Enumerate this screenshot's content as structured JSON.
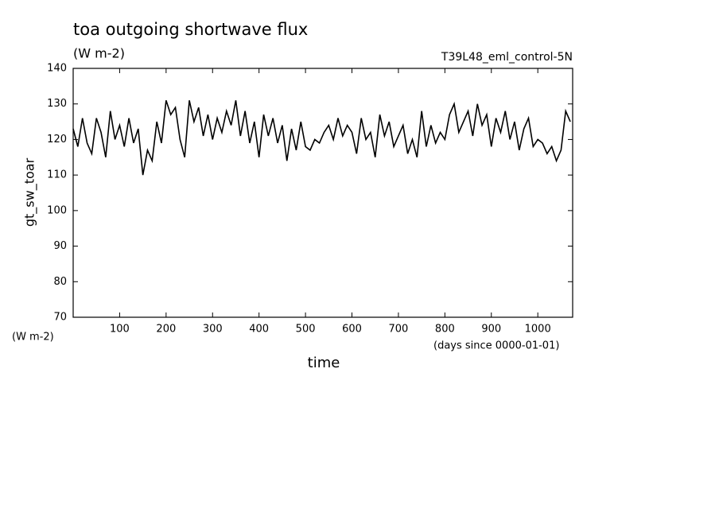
{
  "chart_data": {
    "type": "line",
    "title": "toa outgoing shortwave flux",
    "subtitle": "(W m-2)",
    "annotation": "T39L48_eml_control-5N",
    "ylabel": "gt_sw_toar",
    "yunits": "(W m-2)",
    "xunits": "(days since 0000-01-01)",
    "xlabel": "time",
    "xlim": [
      0,
      1075
    ],
    "ylim": [
      70,
      140
    ],
    "xticks": [
      100,
      200,
      300,
      400,
      500,
      600,
      700,
      800,
      900,
      1000
    ],
    "yticks": [
      70,
      80,
      90,
      100,
      110,
      120,
      130,
      140
    ],
    "grid": false,
    "x": [
      0,
      10,
      20,
      30,
      40,
      50,
      60,
      70,
      80,
      90,
      100,
      110,
      120,
      130,
      140,
      150,
      160,
      170,
      180,
      190,
      200,
      210,
      220,
      230,
      240,
      250,
      260,
      270,
      280,
      290,
      300,
      310,
      320,
      330,
      340,
      350,
      360,
      370,
      380,
      390,
      400,
      410,
      420,
      430,
      440,
      450,
      460,
      470,
      480,
      490,
      500,
      510,
      520,
      530,
      540,
      550,
      560,
      570,
      580,
      590,
      600,
      610,
      620,
      630,
      640,
      650,
      660,
      670,
      680,
      690,
      700,
      710,
      720,
      730,
      740,
      750,
      760,
      770,
      780,
      790,
      800,
      810,
      820,
      830,
      840,
      850,
      860,
      870,
      880,
      890,
      900,
      910,
      920,
      930,
      940,
      950,
      960,
      970,
      980,
      990,
      1000,
      1010,
      1020,
      1030,
      1040,
      1050,
      1060,
      1070
    ],
    "series": [
      {
        "name": "gt_sw_toar",
        "color": "#000000",
        "values": [
          123,
          118,
          126,
          119,
          116,
          126,
          122,
          115,
          128,
          120,
          124,
          118,
          126,
          119,
          123,
          110,
          117,
          114,
          125,
          119,
          131,
          127,
          129,
          120,
          115,
          131,
          125,
          129,
          121,
          127,
          120,
          126,
          122,
          128,
          124,
          131,
          121,
          128,
          119,
          125,
          115,
          127,
          121,
          126,
          119,
          124,
          114,
          123,
          117,
          125,
          118,
          117,
          120,
          119,
          122,
          124,
          120,
          126,
          121,
          124,
          122,
          116,
          126,
          120,
          122,
          115,
          127,
          121,
          125,
          118,
          121,
          124,
          116,
          120,
          115,
          128,
          118,
          124,
          119,
          122,
          120,
          127,
          130,
          122,
          125,
          128,
          121,
          130,
          124,
          127,
          118,
          126,
          122,
          128,
          120,
          125,
          117,
          123,
          126,
          118,
          120,
          119,
          116,
          118,
          114,
          117,
          128,
          125
        ]
      }
    ]
  }
}
